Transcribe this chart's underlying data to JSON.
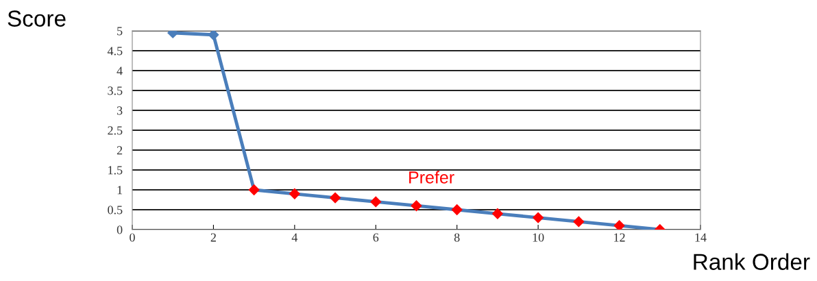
{
  "chart_data": {
    "type": "line",
    "xlabel": "Rank Order",
    "ylabel": "Score",
    "x": [
      1,
      2,
      3,
      4,
      5,
      6,
      7,
      8,
      9,
      10,
      11,
      12,
      13
    ],
    "series": [
      {
        "color": "#4a7ebb",
        "colors": [
          "#4a7ebb",
          "#4a7ebb",
          "#ff0000",
          "#ff0000",
          "#ff0000",
          "#ff0000",
          "#ff0000",
          "#ff0000",
          "#ff0000",
          "#ff0000",
          "#ff0000",
          "#ff0000",
          "#ff0000"
        ],
        "values": [
          4.95,
          4.9,
          1,
          0.9,
          0.8,
          0.7,
          0.6,
          0.5,
          0.4,
          0.3,
          0.2,
          0.1,
          0
        ]
      }
    ],
    "xlim": [
      0,
      14
    ],
    "xticks": [
      0,
      2,
      4,
      6,
      8,
      10,
      12,
      14
    ],
    "ylim": [
      0,
      5
    ],
    "yticks": [
      0,
      0.5,
      1,
      1.5,
      2,
      2.5,
      3,
      3.5,
      4,
      4.5,
      5
    ],
    "grid": "y",
    "marker": "diamond",
    "line_style": "solid",
    "annotations": [
      "Prefer"
    ]
  }
}
